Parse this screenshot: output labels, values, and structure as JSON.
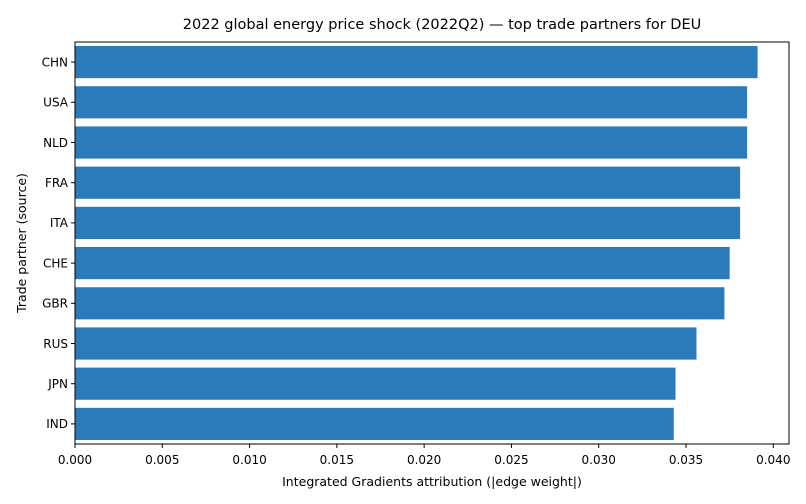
{
  "chart_data": {
    "type": "bar",
    "orientation": "horizontal",
    "title": "2022 global energy price shock (2022Q2) — top trade partners for DEU",
    "xlabel": "Integrated Gradients attribution (|edge weight|)",
    "ylabel": "Trade partner (source)",
    "categories": [
      "CHN",
      "USA",
      "NLD",
      "FRA",
      "ITA",
      "CHE",
      "GBR",
      "RUS",
      "JPN",
      "IND"
    ],
    "values": [
      0.0391,
      0.0385,
      0.0385,
      0.0381,
      0.0381,
      0.0375,
      0.0372,
      0.0356,
      0.0344,
      0.0343
    ],
    "xlim": [
      0,
      0.0409
    ],
    "xticks": [
      "0.000",
      "0.005",
      "0.010",
      "0.015",
      "0.020",
      "0.025",
      "0.030",
      "0.035",
      "0.040"
    ],
    "grid": false,
    "legend": "none",
    "bar_color": "#2b7bba"
  }
}
